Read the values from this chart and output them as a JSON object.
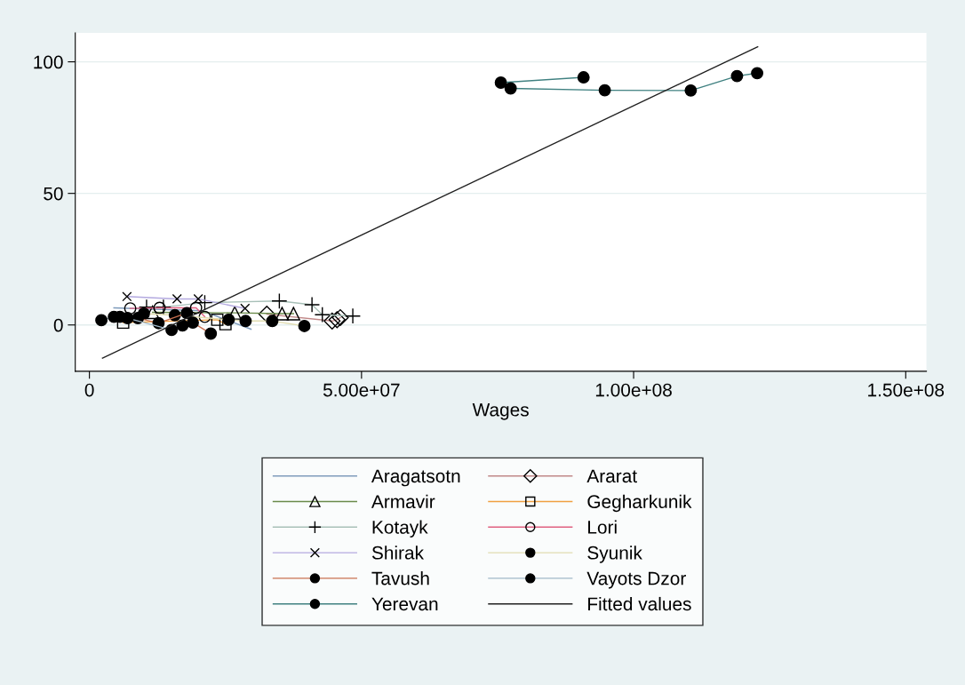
{
  "chart_data": {
    "type": "line",
    "xlabel": "Wages",
    "xlim": [
      -2600000,
      153800000
    ],
    "ylim": [
      -17.6,
      111
    ],
    "xticks": [
      0,
      {
        "value": 50000000,
        "label": "5.00e+07"
      },
      {
        "value": 100000000,
        "label": "1.00e+08"
      },
      {
        "value": 150000000,
        "label": "1.50e+08"
      }
    ],
    "yticks": [
      0,
      50,
      100
    ],
    "grid": "y",
    "legend": "bottom",
    "series": [
      {
        "name": "Aragatsotn",
        "color": "#7f9cbc",
        "marker": "none",
        "x": [
          4500000.0,
          20700000.0,
          29700000.0
        ],
        "values": [
          6.5,
          5.4,
          -1.6
        ]
      },
      {
        "name": "Ararat",
        "color": "#c08888",
        "marker": "diamond",
        "x": [
          32600000.0,
          44600000.0,
          45500000.0,
          46100000.0
        ],
        "values": [
          4.1,
          1.5,
          2.0,
          2.8
        ]
      },
      {
        "name": "Armavir",
        "color": "#6a8a4a",
        "marker": "triangle",
        "x": [
          11600000.0,
          26700000.0,
          35400000.0,
          37500000.0
        ],
        "values": [
          4.8,
          4.6,
          4.3,
          4.3
        ]
      },
      {
        "name": "Gegharkunik",
        "color": "#f0a040",
        "marker": "square",
        "x": [
          6200000.0,
          23500000.0,
          25000000.0
        ],
        "values": [
          0.9,
          2.0,
          0.3
        ]
      },
      {
        "name": "Kotayk",
        "color": "#a8c0b8",
        "marker": "plus",
        "x": [
          10500000.0,
          13600000.0,
          21200000.0,
          34900000.0,
          40900000.0,
          42800000.0,
          48400000.0
        ],
        "values": [
          6.8,
          6.8,
          8.5,
          9.1,
          7.7,
          3.9,
          3.4
        ]
      },
      {
        "name": "Lori",
        "color": "#e06080",
        "marker": "circle",
        "x": [
          7500000.0,
          12900000.0,
          19600000.0,
          21200000.0
        ],
        "values": [
          6.3,
          6.5,
          6.5,
          3.1
        ]
      },
      {
        "name": "Shirak",
        "color": "#b4aae0",
        "marker": "cross",
        "x": [
          6900000.0,
          16100000.0,
          20000000.0,
          28600000.0
        ],
        "values": [
          10.8,
          9.9,
          9.9,
          6.3
        ]
      },
      {
        "name": "Syunik",
        "color": "#e0dcb0",
        "marker": "dot",
        "x": [
          10000000.0,
          15700000.0,
          25600000.0,
          28700000.0,
          33600000.0,
          39500000.0
        ],
        "values": [
          4.3,
          3.7,
          2.0,
          1.5,
          1.5,
          -0.4
        ]
      },
      {
        "name": "Tavush",
        "color": "#c87050",
        "marker": "dot",
        "x": [
          8900000.0,
          12700000.0,
          17900000.0,
          19000000.0,
          22300000.0
        ],
        "values": [
          2.6,
          0.7,
          4.5,
          0.9,
          -3.3
        ]
      },
      {
        "name": "Vayots Dzor",
        "color": "#a0b8c8",
        "marker": "dot",
        "x": [
          2200000.0,
          4500000.0,
          5600000.0,
          7000000.0,
          15100000.0,
          17100000.0
        ],
        "values": [
          1.8,
          3.1,
          3.1,
          2.6,
          -1.9,
          -0.2
        ]
      },
      {
        "name": "Yerevan",
        "color": "#3f8080",
        "marker": "dot",
        "x": [
          90800000.0,
          75600000.0,
          77400000.0,
          94700000.0,
          110500000.0,
          119000000.0,
          122700000.0
        ],
        "values": [
          94.1,
          92.1,
          89.9,
          89.2,
          89.1,
          94.6,
          95.7
        ]
      },
      {
        "name": "Fitted values",
        "color": "#202020",
        "marker": "none",
        "x": [
          2400000.0,
          122800000.0
        ],
        "values": [
          -12.6,
          105.7
        ]
      }
    ]
  }
}
